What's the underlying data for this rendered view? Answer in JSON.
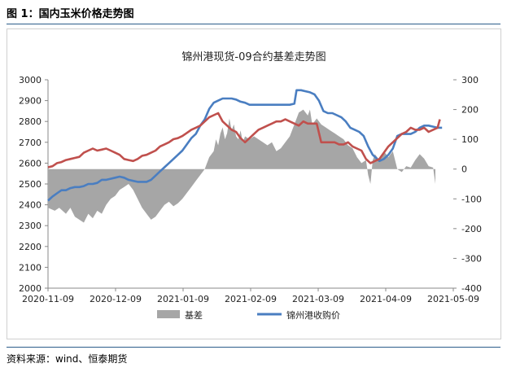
{
  "figure": {
    "caption": "图 1：国内玉米价格走势图",
    "source": "资料来源：wind、恒泰期货"
  },
  "chart_data": {
    "type": "line",
    "title": "锦州港现货-09合约基差走势图",
    "x_ticks": [
      "2020-11-09",
      "2020-12-09",
      "2021-01-09",
      "2021-02-09",
      "2021-03-09",
      "2021-04-09",
      "2021-05-09"
    ],
    "y_left": {
      "min": 2000,
      "max": 3000,
      "ticks": [
        3000,
        2900,
        2800,
        2700,
        2600,
        2500,
        2400,
        2300,
        2200,
        2100,
        2000
      ]
    },
    "y_right": {
      "min": -400,
      "max": 300,
      "ticks": [
        300,
        200,
        100,
        0,
        -100,
        -200,
        -300,
        -400
      ]
    },
    "x_range": [
      0,
      181
    ],
    "legend_position": "bottom",
    "colors": {
      "basis": "#a6a6a6",
      "blue": "#4a7ec1",
      "red": "#c0504d"
    },
    "series": [
      {
        "name": "基差",
        "type": "area",
        "axis": "right",
        "points": [
          [
            0,
            -130
          ],
          [
            3,
            -140
          ],
          [
            5,
            -130
          ],
          [
            8,
            -150
          ],
          [
            10,
            -130
          ],
          [
            12,
            -160
          ],
          [
            14,
            -170
          ],
          [
            16,
            -180
          ],
          [
            18,
            -150
          ],
          [
            20,
            -165
          ],
          [
            22,
            -140
          ],
          [
            24,
            -150
          ],
          [
            26,
            -120
          ],
          [
            28,
            -100
          ],
          [
            30,
            -90
          ],
          [
            32,
            -70
          ],
          [
            34,
            -60
          ],
          [
            36,
            -50
          ],
          [
            38,
            -70
          ],
          [
            40,
            -100
          ],
          [
            42,
            -130
          ],
          [
            44,
            -150
          ],
          [
            46,
            -170
          ],
          [
            48,
            -160
          ],
          [
            50,
            -140
          ],
          [
            52,
            -120
          ],
          [
            54,
            -110
          ],
          [
            56,
            -125
          ],
          [
            58,
            -115
          ],
          [
            60,
            -100
          ],
          [
            62,
            -80
          ],
          [
            64,
            -60
          ],
          [
            66,
            -40
          ],
          [
            68,
            -20
          ],
          [
            70,
            0
          ],
          [
            72,
            40
          ],
          [
            74,
            60
          ],
          [
            75,
            100
          ],
          [
            76,
            80
          ],
          [
            77,
            120
          ],
          [
            78,
            140
          ],
          [
            79,
            100
          ],
          [
            80,
            120
          ],
          [
            81,
            170
          ],
          [
            82,
            130
          ],
          [
            83,
            150
          ],
          [
            84,
            110
          ],
          [
            85,
            100
          ],
          [
            86,
            130
          ],
          [
            87,
            90
          ],
          [
            88,
            110
          ],
          [
            90,
            100
          ],
          [
            92,
            110
          ],
          [
            94,
            100
          ],
          [
            96,
            90
          ],
          [
            98,
            80
          ],
          [
            100,
            90
          ],
          [
            102,
            60
          ],
          [
            104,
            70
          ],
          [
            106,
            90
          ],
          [
            108,
            110
          ],
          [
            110,
            150
          ],
          [
            112,
            190
          ],
          [
            114,
            200
          ],
          [
            116,
            180
          ],
          [
            117,
            200
          ],
          [
            118,
            150
          ],
          [
            120,
            170
          ],
          [
            122,
            150
          ],
          [
            124,
            140
          ],
          [
            126,
            130
          ],
          [
            128,
            120
          ],
          [
            130,
            110
          ],
          [
            132,
            100
          ],
          [
            134,
            80
          ],
          [
            136,
            70
          ],
          [
            138,
            40
          ],
          [
            140,
            20
          ],
          [
            142,
            30
          ],
          [
            143,
            -20
          ],
          [
            144,
            -50
          ],
          [
            145,
            30
          ],
          [
            146,
            50
          ],
          [
            148,
            30
          ],
          [
            150,
            60
          ],
          [
            152,
            40
          ],
          [
            154,
            60
          ],
          [
            156,
            0
          ],
          [
            158,
            -10
          ],
          [
            160,
            10
          ],
          [
            162,
            5
          ],
          [
            164,
            30
          ],
          [
            166,
            50
          ],
          [
            168,
            35
          ],
          [
            170,
            10
          ],
          [
            172,
            5
          ],
          [
            173,
            -50
          ]
        ]
      },
      {
        "name": "锦州港收购价",
        "type": "line",
        "axis": "left",
        "points": [
          [
            0,
            2420
          ],
          [
            2,
            2440
          ],
          [
            4,
            2455
          ],
          [
            6,
            2470
          ],
          [
            8,
            2470
          ],
          [
            10,
            2480
          ],
          [
            12,
            2485
          ],
          [
            14,
            2485
          ],
          [
            16,
            2490
          ],
          [
            18,
            2500
          ],
          [
            20,
            2500
          ],
          [
            22,
            2505
          ],
          [
            24,
            2520
          ],
          [
            26,
            2520
          ],
          [
            28,
            2525
          ],
          [
            30,
            2530
          ],
          [
            32,
            2535
          ],
          [
            34,
            2530
          ],
          [
            36,
            2520
          ],
          [
            38,
            2515
          ],
          [
            40,
            2510
          ],
          [
            42,
            2510
          ],
          [
            44,
            2510
          ],
          [
            46,
            2520
          ],
          [
            48,
            2540
          ],
          [
            50,
            2560
          ],
          [
            52,
            2580
          ],
          [
            54,
            2600
          ],
          [
            56,
            2620
          ],
          [
            58,
            2640
          ],
          [
            60,
            2660
          ],
          [
            62,
            2690
          ],
          [
            64,
            2720
          ],
          [
            66,
            2740
          ],
          [
            68,
            2780
          ],
          [
            70,
            2810
          ],
          [
            72,
            2860
          ],
          [
            74,
            2890
          ],
          [
            76,
            2900
          ],
          [
            78,
            2910
          ],
          [
            80,
            2910
          ],
          [
            82,
            2910
          ],
          [
            84,
            2905
          ],
          [
            86,
            2895
          ],
          [
            88,
            2890
          ],
          [
            90,
            2880
          ],
          [
            92,
            2880
          ],
          [
            94,
            2880
          ],
          [
            96,
            2880
          ],
          [
            98,
            2880
          ],
          [
            100,
            2880
          ],
          [
            102,
            2880
          ],
          [
            104,
            2880
          ],
          [
            106,
            2880
          ],
          [
            108,
            2880
          ],
          [
            110,
            2885
          ],
          [
            111,
            2950
          ],
          [
            113,
            2950
          ],
          [
            115,
            2945
          ],
          [
            117,
            2940
          ],
          [
            119,
            2930
          ],
          [
            121,
            2900
          ],
          [
            123,
            2850
          ],
          [
            125,
            2840
          ],
          [
            127,
            2840
          ],
          [
            129,
            2830
          ],
          [
            131,
            2820
          ],
          [
            133,
            2800
          ],
          [
            135,
            2770
          ],
          [
            137,
            2760
          ],
          [
            139,
            2750
          ],
          [
            141,
            2730
          ],
          [
            143,
            2680
          ],
          [
            145,
            2640
          ],
          [
            147,
            2620
          ],
          [
            148,
            2610
          ],
          [
            150,
            2620
          ],
          [
            152,
            2640
          ],
          [
            154,
            2670
          ],
          [
            156,
            2730
          ],
          [
            158,
            2740
          ],
          [
            160,
            2740
          ],
          [
            162,
            2740
          ],
          [
            164,
            2750
          ],
          [
            166,
            2770
          ],
          [
            168,
            2780
          ],
          [
            170,
            2780
          ],
          [
            172,
            2775
          ],
          [
            174,
            2770
          ],
          [
            176,
            2770
          ]
        ]
      },
      {
        "name": "",
        "type": "line",
        "axis": "left",
        "points": [
          [
            0,
            2580
          ],
          [
            2,
            2585
          ],
          [
            4,
            2600
          ],
          [
            6,
            2605
          ],
          [
            8,
            2615
          ],
          [
            10,
            2620
          ],
          [
            12,
            2625
          ],
          [
            14,
            2630
          ],
          [
            16,
            2650
          ],
          [
            18,
            2660
          ],
          [
            20,
            2670
          ],
          [
            22,
            2660
          ],
          [
            24,
            2665
          ],
          [
            26,
            2670
          ],
          [
            28,
            2660
          ],
          [
            30,
            2650
          ],
          [
            32,
            2640
          ],
          [
            34,
            2620
          ],
          [
            36,
            2615
          ],
          [
            38,
            2610
          ],
          [
            40,
            2620
          ],
          [
            42,
            2635
          ],
          [
            44,
            2640
          ],
          [
            46,
            2650
          ],
          [
            48,
            2660
          ],
          [
            50,
            2680
          ],
          [
            52,
            2690
          ],
          [
            54,
            2700
          ],
          [
            56,
            2715
          ],
          [
            58,
            2720
          ],
          [
            60,
            2730
          ],
          [
            62,
            2745
          ],
          [
            64,
            2760
          ],
          [
            66,
            2770
          ],
          [
            68,
            2780
          ],
          [
            70,
            2800
          ],
          [
            72,
            2820
          ],
          [
            74,
            2830
          ],
          [
            76,
            2840
          ],
          [
            78,
            2800
          ],
          [
            80,
            2780
          ],
          [
            82,
            2760
          ],
          [
            84,
            2750
          ],
          [
            86,
            2720
          ],
          [
            88,
            2700
          ],
          [
            90,
            2720
          ],
          [
            92,
            2740
          ],
          [
            94,
            2760
          ],
          [
            96,
            2770
          ],
          [
            98,
            2780
          ],
          [
            100,
            2790
          ],
          [
            102,
            2800
          ],
          [
            104,
            2800
          ],
          [
            106,
            2810
          ],
          [
            108,
            2800
          ],
          [
            110,
            2790
          ],
          [
            112,
            2780
          ],
          [
            114,
            2800
          ],
          [
            116,
            2790
          ],
          [
            118,
            2790
          ],
          [
            120,
            2790
          ],
          [
            122,
            2700
          ],
          [
            124,
            2700
          ],
          [
            126,
            2700
          ],
          [
            128,
            2700
          ],
          [
            130,
            2690
          ],
          [
            132,
            2690
          ],
          [
            134,
            2700
          ],
          [
            136,
            2680
          ],
          [
            138,
            2670
          ],
          [
            140,
            2660
          ],
          [
            142,
            2620
          ],
          [
            144,
            2600
          ],
          [
            146,
            2610
          ],
          [
            148,
            2620
          ],
          [
            150,
            2650
          ],
          [
            152,
            2680
          ],
          [
            154,
            2700
          ],
          [
            156,
            2720
          ],
          [
            158,
            2740
          ],
          [
            160,
            2750
          ],
          [
            162,
            2770
          ],
          [
            164,
            2760
          ],
          [
            166,
            2760
          ],
          [
            168,
            2770
          ],
          [
            170,
            2750
          ],
          [
            172,
            2760
          ],
          [
            174,
            2770
          ],
          [
            175,
            2810
          ]
        ]
      }
    ]
  }
}
